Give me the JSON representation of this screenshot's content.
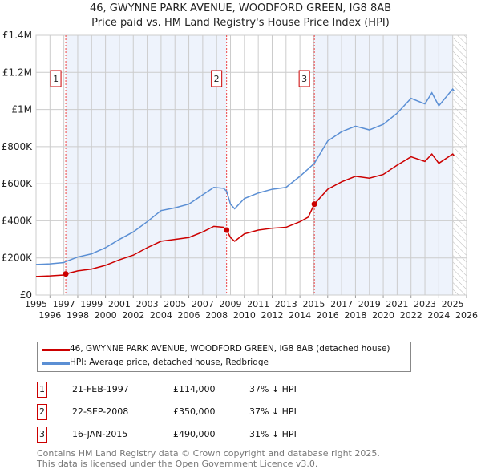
{
  "title": "46, GWYNNE PARK AVENUE, WOODFORD GREEN, IG8 8AB",
  "subtitle": "Price paid vs. HM Land Registry's House Price Index (HPI)",
  "chart_data": {
    "type": "line",
    "xlim": [
      1995,
      2026
    ],
    "ylim": [
      0,
      1400000
    ],
    "x_ticks": [
      "1995",
      "1996",
      "1997",
      "1998",
      "1999",
      "2000",
      "2001",
      "2002",
      "2003",
      "2004",
      "2005",
      "2006",
      "2007",
      "2008",
      "2009",
      "2010",
      "2011",
      "2012",
      "2013",
      "2014",
      "2015",
      "2016",
      "2017",
      "2018",
      "2019",
      "2020",
      "2021",
      "2022",
      "2023",
      "2024",
      "2025",
      "2026"
    ],
    "y_ticks": [
      {
        "v": 0,
        "label": "£0"
      },
      {
        "v": 200000,
        "label": "£200K"
      },
      {
        "v": 400000,
        "label": "£400K"
      },
      {
        "v": 600000,
        "label": "£600K"
      },
      {
        "v": 800000,
        "label": "£800K"
      },
      {
        "v": 1000000,
        "label": "£1M"
      },
      {
        "v": 1200000,
        "label": "£1.2M"
      },
      {
        "v": 1400000,
        "label": "£1.4M"
      }
    ],
    "grid": true,
    "series": [
      {
        "name": "46, GWYNNE PARK AVENUE, WOODFORD GREEN, IG8 8AB (detached house)",
        "color": "#cc0000",
        "x": [
          1995,
          1996,
          1997,
          1997.14,
          1998,
          1999,
          2000,
          2001,
          2002,
          2003,
          2004,
          2005,
          2006,
          2007,
          2007.8,
          2008.5,
          2008.72,
          2009,
          2009.3,
          2010,
          2011,
          2012,
          2013,
          2014,
          2014.6,
          2015.04,
          2016,
          2017,
          2018,
          2019,
          2020,
          2021,
          2022,
          2023,
          2023.5,
          2024,
          2025,
          2025.1
        ],
        "y": [
          100000,
          103000,
          108000,
          114000,
          130000,
          140000,
          160000,
          190000,
          215000,
          255000,
          290000,
          300000,
          310000,
          340000,
          370000,
          365000,
          350000,
          310000,
          290000,
          330000,
          350000,
          360000,
          365000,
          395000,
          420000,
          490000,
          570000,
          610000,
          640000,
          630000,
          650000,
          700000,
          745000,
          720000,
          760000,
          710000,
          760000,
          750000
        ]
      },
      {
        "name": "HPI: Average price, detached house, Redbridge",
        "color": "#5b8fd4",
        "x": [
          1995,
          1996,
          1997,
          1997.14,
          1998,
          1999,
          2000,
          2001,
          2002,
          2003,
          2004,
          2005,
          2006,
          2007,
          2007.8,
          2008.5,
          2008.72,
          2009,
          2009.3,
          2010,
          2011,
          2012,
          2013,
          2014,
          2014.6,
          2015.04,
          2016,
          2017,
          2018,
          2019,
          2020,
          2021,
          2022,
          2023,
          2023.5,
          2024,
          2025,
          2025.1
        ],
        "y": [
          165000,
          168000,
          175000,
          180000,
          205000,
          222000,
          255000,
          300000,
          340000,
          395000,
          455000,
          470000,
          490000,
          540000,
          580000,
          575000,
          560000,
          490000,
          465000,
          520000,
          550000,
          570000,
          580000,
          640000,
          680000,
          710000,
          830000,
          880000,
          910000,
          890000,
          920000,
          980000,
          1060000,
          1030000,
          1090000,
          1020000,
          1110000,
          1100000
        ]
      }
    ],
    "sales": [
      {
        "n": "1",
        "x": 1997.14,
        "date": "21-FEB-1997",
        "price": "£114,000",
        "v": 114000,
        "hpi": "37% ↓ HPI"
      },
      {
        "n": "2",
        "x": 2008.72,
        "date": "22-SEP-2008",
        "price": "£350,000",
        "v": 350000,
        "hpi": "37% ↓ HPI"
      },
      {
        "n": "3",
        "x": 2015.04,
        "date": "16-JAN-2015",
        "price": "£490,000",
        "v": 490000,
        "hpi": "31% ↓ HPI"
      }
    ],
    "forecast_start": 2025.0
  },
  "legend": {
    "red": "46, GWYNNE PARK AVENUE, WOODFORD GREEN, IG8 8AB (detached house)",
    "blue": "HPI: Average price, detached house, Redbridge"
  },
  "footer": {
    "line1": "Contains HM Land Registry data © Crown copyright and database right 2025.",
    "line2": "This data is licensed under the Open Government Licence v3.0."
  }
}
